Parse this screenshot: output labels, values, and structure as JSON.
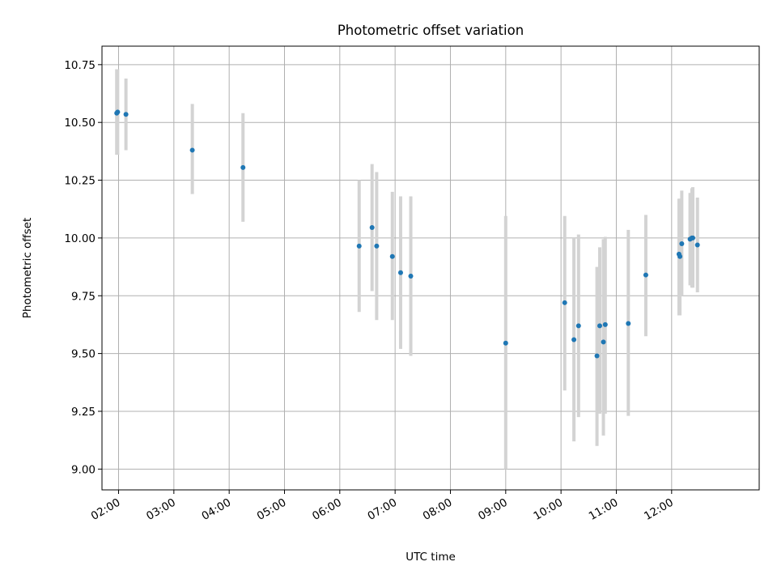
{
  "chart_data": {
    "type": "scatter",
    "title": "Photometric offset variation",
    "xlabel": "UTC time",
    "ylabel": "Photometric offset",
    "x_axis": "time",
    "xlim": [
      "01:42",
      "13:35"
    ],
    "ylim": [
      8.91,
      10.83
    ],
    "x_ticks": [
      "02:00",
      "03:00",
      "04:00",
      "05:00",
      "06:00",
      "07:00",
      "08:00",
      "09:00",
      "10:00",
      "11:00",
      "12:00"
    ],
    "y_ticks": [
      "9.00",
      "9.25",
      "9.50",
      "9.75",
      "10.00",
      "10.25",
      "10.50",
      "10.75"
    ],
    "grid": true,
    "colors": {
      "points": "#1f77b4",
      "errorbars": "#d3d3d3",
      "grid": "#b0b0b0"
    },
    "series": [
      {
        "points": [
          {
            "x": "01:58",
            "y": 10.54,
            "ylow": 10.36,
            "yhigh": 10.73
          },
          {
            "x": "01:59",
            "y": 10.545,
            "ylow": 10.36,
            "yhigh": 10.73
          },
          {
            "x": "02:08",
            "y": 10.535,
            "ylow": 10.38,
            "yhigh": 10.69
          },
          {
            "x": "03:20",
            "y": 10.38,
            "ylow": 10.19,
            "yhigh": 10.58
          },
          {
            "x": "04:15",
            "y": 10.305,
            "ylow": 10.07,
            "yhigh": 10.54
          },
          {
            "x": "06:21",
            "y": 9.965,
            "ylow": 9.68,
            "yhigh": 10.25
          },
          {
            "x": "06:35",
            "y": 10.045,
            "ylow": 9.77,
            "yhigh": 10.32
          },
          {
            "x": "06:40",
            "y": 9.965,
            "ylow": 9.645,
            "yhigh": 10.285
          },
          {
            "x": "06:57",
            "y": 9.92,
            "ylow": 9.645,
            "yhigh": 10.2
          },
          {
            "x": "07:06",
            "y": 9.85,
            "ylow": 9.52,
            "yhigh": 10.18
          },
          {
            "x": "07:17",
            "y": 9.835,
            "ylow": 9.49,
            "yhigh": 10.18
          },
          {
            "x": "09:00",
            "y": 9.545,
            "ylow": 9.0,
            "yhigh": 10.095
          },
          {
            "x": "10:04",
            "y": 9.72,
            "ylow": 9.34,
            "yhigh": 10.095
          },
          {
            "x": "10:14",
            "y": 9.56,
            "ylow": 9.12,
            "yhigh": 10.0
          },
          {
            "x": "10:19",
            "y": 9.62,
            "ylow": 9.225,
            "yhigh": 10.015
          },
          {
            "x": "10:39",
            "y": 9.49,
            "ylow": 9.1,
            "yhigh": 9.875
          },
          {
            "x": "10:42",
            "y": 9.62,
            "ylow": 9.24,
            "yhigh": 9.96
          },
          {
            "x": "10:46",
            "y": 9.55,
            "ylow": 9.145,
            "yhigh": 9.995
          },
          {
            "x": "10:48",
            "y": 9.625,
            "ylow": 9.24,
            "yhigh": 10.005
          },
          {
            "x": "11:13",
            "y": 9.63,
            "ylow": 9.23,
            "yhigh": 10.035
          },
          {
            "x": "11:32",
            "y": 9.84,
            "ylow": 9.575,
            "yhigh": 10.1
          },
          {
            "x": "12:08",
            "y": 9.93,
            "ylow": 9.665,
            "yhigh": 10.17
          },
          {
            "x": "12:09",
            "y": 9.92,
            "ylow": 9.665,
            "yhigh": 10.17
          },
          {
            "x": "12:11",
            "y": 9.975,
            "ylow": 9.75,
            "yhigh": 10.205
          },
          {
            "x": "12:20",
            "y": 9.995,
            "ylow": 9.795,
            "yhigh": 10.195
          },
          {
            "x": "12:22",
            "y": 10.0,
            "ylow": 9.785,
            "yhigh": 10.215
          },
          {
            "x": "12:23",
            "y": 10.0,
            "ylow": 9.785,
            "yhigh": 10.22
          },
          {
            "x": "12:28",
            "y": 9.97,
            "ylow": 9.765,
            "yhigh": 10.175
          }
        ]
      }
    ]
  }
}
